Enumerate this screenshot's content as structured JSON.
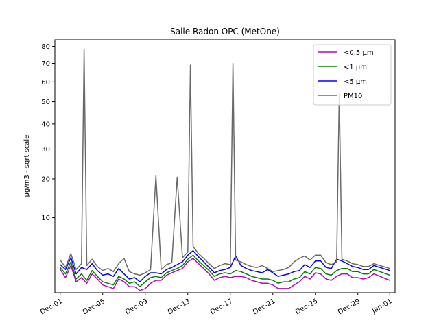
{
  "chart_data": {
    "type": "line",
    "title": "Salle Radon OPC (MetOne)",
    "xlabel": "",
    "ylabel": "µg/m3 - sqrt scale",
    "y_scale": "sqrt",
    "ylim": [
      0.4,
      84
    ],
    "xlim": [
      "2019-11-30T12:00",
      "2020-01-01T12:00"
    ],
    "x_ticks": [
      "Dec-01",
      "Dec-05",
      "Dec-09",
      "Dec-13",
      "Dec-17",
      "Dec-21",
      "Dec-25",
      "Dec-29",
      "Jan-01"
    ],
    "x_tick_dates": [
      "2019-12-01",
      "2019-12-05",
      "2019-12-09",
      "2019-12-13",
      "2019-12-17",
      "2019-12-21",
      "2019-12-25",
      "2019-12-29",
      "2020-01-01"
    ],
    "y_ticks": [
      10,
      20,
      30,
      40,
      50,
      60,
      70,
      80
    ],
    "grid": false,
    "legend_position": "top-right",
    "series": [
      {
        "name": "<0.5 µm",
        "color": "#bf00bf",
        "x": [
          "2019-12-01T00:00",
          "2019-12-01T12:00",
          "2019-12-02T00:00",
          "2019-12-02T12:00",
          "2019-12-03T00:00",
          "2019-12-03T12:00",
          "2019-12-04T00:00",
          "2019-12-04T12:00",
          "2019-12-05T00:00",
          "2019-12-05T12:00",
          "2019-12-06T00:00",
          "2019-12-06T12:00",
          "2019-12-07T00:00",
          "2019-12-07T12:00",
          "2019-12-08T00:00",
          "2019-12-08T12:00",
          "2019-12-09T00:00",
          "2019-12-09T12:00",
          "2019-12-10T00:00",
          "2019-12-10T12:00",
          "2019-12-11T00:00",
          "2019-12-11T12:00",
          "2019-12-12T00:00",
          "2019-12-12T12:00",
          "2019-12-13T00:00",
          "2019-12-13T12:00",
          "2019-12-14T00:00",
          "2019-12-14T12:00",
          "2019-12-15T00:00",
          "2019-12-15T12:00",
          "2019-12-16T00:00",
          "2019-12-16T12:00",
          "2019-12-17T00:00",
          "2019-12-17T12:00",
          "2019-12-18T00:00",
          "2019-12-18T12:00",
          "2019-12-19T00:00",
          "2019-12-19T12:00",
          "2019-12-20T00:00",
          "2019-12-20T12:00",
          "2019-12-21T00:00",
          "2019-12-21T12:00",
          "2019-12-22T00:00",
          "2019-12-22T12:00",
          "2019-12-23T00:00",
          "2019-12-23T12:00",
          "2019-12-24T00:00",
          "2019-12-24T12:00",
          "2019-12-25T00:00",
          "2019-12-25T12:00",
          "2019-12-26T00:00",
          "2019-12-26T12:00",
          "2019-12-27T00:00",
          "2019-12-27T12:00",
          "2019-12-28T00:00",
          "2019-12-28T12:00",
          "2019-12-29T00:00",
          "2019-12-29T12:00",
          "2019-12-30T00:00",
          "2019-12-30T12:00",
          "2020-01-01T00:00"
        ],
        "values": [
          2.0,
          1.3,
          2.4,
          1.0,
          1.3,
          0.9,
          1.6,
          1.2,
          0.8,
          0.7,
          0.6,
          1.2,
          1.0,
          0.7,
          0.7,
          0.5,
          0.6,
          0.9,
          1.1,
          1.1,
          1.5,
          1.7,
          1.9,
          2.1,
          2.8,
          3.2,
          2.6,
          2.1,
          1.6,
          1.1,
          1.3,
          1.4,
          1.3,
          1.4,
          1.4,
          1.3,
          1.1,
          1.0,
          0.9,
          0.9,
          0.8,
          0.6,
          0.6,
          0.6,
          0.8,
          1.0,
          1.4,
          1.2,
          1.7,
          1.6,
          1.2,
          1.1,
          1.4,
          1.6,
          1.6,
          1.3,
          1.3,
          1.2,
          1.3,
          1.6,
          1.1
        ]
      },
      {
        "name": "<1 µm",
        "color": "#008000",
        "x": [
          "2019-12-01T00:00",
          "2019-12-01T12:00",
          "2019-12-02T00:00",
          "2019-12-02T12:00",
          "2019-12-03T00:00",
          "2019-12-03T12:00",
          "2019-12-04T00:00",
          "2019-12-04T12:00",
          "2019-12-05T00:00",
          "2019-12-05T12:00",
          "2019-12-06T00:00",
          "2019-12-06T12:00",
          "2019-12-07T00:00",
          "2019-12-07T12:00",
          "2019-12-08T00:00",
          "2019-12-08T12:00",
          "2019-12-09T00:00",
          "2019-12-09T12:00",
          "2019-12-10T00:00",
          "2019-12-10T12:00",
          "2019-12-11T00:00",
          "2019-12-11T12:00",
          "2019-12-12T00:00",
          "2019-12-12T12:00",
          "2019-12-13T00:00",
          "2019-12-13T12:00",
          "2019-12-14T00:00",
          "2019-12-14T12:00",
          "2019-12-15T00:00",
          "2019-12-15T12:00",
          "2019-12-16T00:00",
          "2019-12-16T12:00",
          "2019-12-17T00:00",
          "2019-12-17T12:00",
          "2019-12-18T00:00",
          "2019-12-18T12:00",
          "2019-12-19T00:00",
          "2019-12-19T12:00",
          "2019-12-20T00:00",
          "2019-12-20T12:00",
          "2019-12-21T00:00",
          "2019-12-21T12:00",
          "2019-12-22T00:00",
          "2019-12-22T12:00",
          "2019-12-23T00:00",
          "2019-12-23T12:00",
          "2019-12-24T00:00",
          "2019-12-24T12:00",
          "2019-12-25T00:00",
          "2019-12-25T12:00",
          "2019-12-26T00:00",
          "2019-12-26T12:00",
          "2019-12-27T00:00",
          "2019-12-27T12:00",
          "2019-12-28T00:00",
          "2019-12-28T12:00",
          "2019-12-29T00:00",
          "2019-12-29T12:00",
          "2019-12-30T00:00",
          "2019-12-30T12:00",
          "2020-01-01T00:00"
        ],
        "values": [
          2.2,
          1.6,
          2.8,
          1.2,
          1.6,
          1.1,
          1.9,
          1.4,
          1.0,
          0.9,
          0.8,
          1.4,
          1.2,
          0.9,
          1.0,
          0.7,
          1.0,
          1.3,
          1.4,
          1.3,
          1.7,
          1.9,
          2.1,
          2.4,
          3.1,
          3.6,
          2.9,
          2.4,
          1.9,
          1.4,
          1.6,
          1.7,
          1.6,
          1.9,
          1.8,
          1.6,
          1.4,
          1.3,
          1.2,
          1.2,
          1.1,
          0.9,
          1.0,
          1.0,
          1.2,
          1.3,
          1.8,
          1.6,
          2.2,
          2.1,
          1.6,
          1.5,
          1.9,
          2.1,
          2.1,
          1.8,
          1.8,
          1.6,
          1.6,
          2.0,
          1.5
        ]
      },
      {
        "name": "<5 µm",
        "color": "#0000ff",
        "x": [
          "2019-12-01T00:00",
          "2019-12-01T12:00",
          "2019-12-02T00:00",
          "2019-12-02T12:00",
          "2019-12-03T00:00",
          "2019-12-03T12:00",
          "2019-12-04T00:00",
          "2019-12-04T12:00",
          "2019-12-05T00:00",
          "2019-12-05T12:00",
          "2019-12-06T00:00",
          "2019-12-06T12:00",
          "2019-12-07T00:00",
          "2019-12-07T12:00",
          "2019-12-08T00:00",
          "2019-12-08T12:00",
          "2019-12-09T00:00",
          "2019-12-09T12:00",
          "2019-12-10T00:00",
          "2019-12-10T12:00",
          "2019-12-11T00:00",
          "2019-12-11T12:00",
          "2019-12-12T00:00",
          "2019-12-12T12:00",
          "2019-12-13T00:00",
          "2019-12-13T12:00",
          "2019-12-14T00:00",
          "2019-12-14T12:00",
          "2019-12-15T00:00",
          "2019-12-15T12:00",
          "2019-12-16T00:00",
          "2019-12-16T12:00",
          "2019-12-17T00:00",
          "2019-12-17T12:00",
          "2019-12-18T00:00",
          "2019-12-18T12:00",
          "2019-12-19T00:00",
          "2019-12-19T12:00",
          "2019-12-20T00:00",
          "2019-12-20T12:00",
          "2019-12-21T00:00",
          "2019-12-21T12:00",
          "2019-12-22T00:00",
          "2019-12-22T12:00",
          "2019-12-23T00:00",
          "2019-12-23T12:00",
          "2019-12-24T00:00",
          "2019-12-24T12:00",
          "2019-12-25T00:00",
          "2019-12-25T12:00",
          "2019-12-26T00:00",
          "2019-12-26T12:00",
          "2019-12-27T00:00",
          "2019-12-27T12:00",
          "2019-12-28T00:00",
          "2019-12-28T12:00",
          "2019-12-29T00:00",
          "2019-12-29T12:00",
          "2019-12-30T00:00",
          "2019-12-30T12:00",
          "2020-01-01T00:00"
        ],
        "values": [
          2.5,
          2.0,
          3.3,
          1.6,
          2.2,
          2.0,
          2.6,
          1.9,
          1.5,
          1.6,
          1.4,
          2.1,
          1.6,
          1.2,
          1.3,
          1.0,
          1.4,
          1.7,
          1.7,
          1.6,
          2.0,
          2.2,
          2.5,
          2.8,
          3.6,
          4.2,
          3.4,
          2.8,
          2.2,
          1.7,
          1.9,
          2.0,
          2.2,
          3.5,
          2.4,
          2.1,
          1.9,
          1.8,
          1.7,
          2.0,
          1.7,
          1.4,
          1.5,
          1.6,
          1.8,
          1.9,
          2.5,
          2.2,
          2.9,
          2.9,
          2.2,
          2.1,
          3.1,
          2.9,
          2.6,
          2.3,
          2.2,
          2.0,
          2.0,
          2.4,
          1.9
        ]
      },
      {
        "name": "PM10",
        "color": "#696969",
        "x": [
          "2019-12-01T00:00",
          "2019-12-01T12:00",
          "2019-12-02T00:00",
          "2019-12-02T12:00",
          "2019-12-03T00:00",
          "2019-12-03T06:00",
          "2019-12-03T12:00",
          "2019-12-04T00:00",
          "2019-12-04T12:00",
          "2019-12-05T00:00",
          "2019-12-05T12:00",
          "2019-12-06T00:00",
          "2019-12-06T12:00",
          "2019-12-07T00:00",
          "2019-12-07T12:00",
          "2019-12-08T00:00",
          "2019-12-08T12:00",
          "2019-12-09T00:00",
          "2019-12-09T12:00",
          "2019-12-10T00:00",
          "2019-12-10T12:00",
          "2019-12-11T00:00",
          "2019-12-11T12:00",
          "2019-12-12T00:00",
          "2019-12-12T12:00",
          "2019-12-13T00:00",
          "2019-12-13T06:00",
          "2019-12-13T12:00",
          "2019-12-14T00:00",
          "2019-12-14T12:00",
          "2019-12-15T00:00",
          "2019-12-15T12:00",
          "2019-12-16T00:00",
          "2019-12-16T12:00",
          "2019-12-17T00:00",
          "2019-12-17T06:00",
          "2019-12-17T12:00",
          "2019-12-18T00:00",
          "2019-12-18T12:00",
          "2019-12-19T00:00",
          "2019-12-19T12:00",
          "2019-12-20T00:00",
          "2019-12-20T12:00",
          "2019-12-21T00:00",
          "2019-12-21T12:00",
          "2019-12-22T00:00",
          "2019-12-22T12:00",
          "2019-12-23T00:00",
          "2019-12-23T12:00",
          "2019-12-24T00:00",
          "2019-12-24T12:00",
          "2019-12-25T00:00",
          "2019-12-25T12:00",
          "2019-12-26T00:00",
          "2019-12-26T12:00",
          "2019-12-27T00:00",
          "2019-12-27T06:00",
          "2019-12-27T12:00",
          "2019-12-28T00:00",
          "2019-12-28T12:00",
          "2019-12-29T00:00",
          "2019-12-29T12:00",
          "2019-12-30T00:00",
          "2019-12-30T12:00",
          "2020-01-01T00:00"
        ],
        "values": [
          3.0,
          2.2,
          3.8,
          2.0,
          2.6,
          78.0,
          2.4,
          3.1,
          2.3,
          1.9,
          2.1,
          1.8,
          2.6,
          3.2,
          1.8,
          1.6,
          1.5,
          1.7,
          2.0,
          21.0,
          2.0,
          2.5,
          2.7,
          20.5,
          3.3,
          4.0,
          69.0,
          4.8,
          3.8,
          3.2,
          2.6,
          2.1,
          2.4,
          2.6,
          2.5,
          70.0,
          3.0,
          2.8,
          2.5,
          2.3,
          2.2,
          2.4,
          2.1,
          1.8,
          1.9,
          2.0,
          2.2,
          2.8,
          3.2,
          3.5,
          3.0,
          3.6,
          3.6,
          2.7,
          2.5,
          2.8,
          54.0,
          3.1,
          2.9,
          2.6,
          2.5,
          2.3,
          2.3,
          2.6,
          2.1
        ]
      }
    ]
  }
}
